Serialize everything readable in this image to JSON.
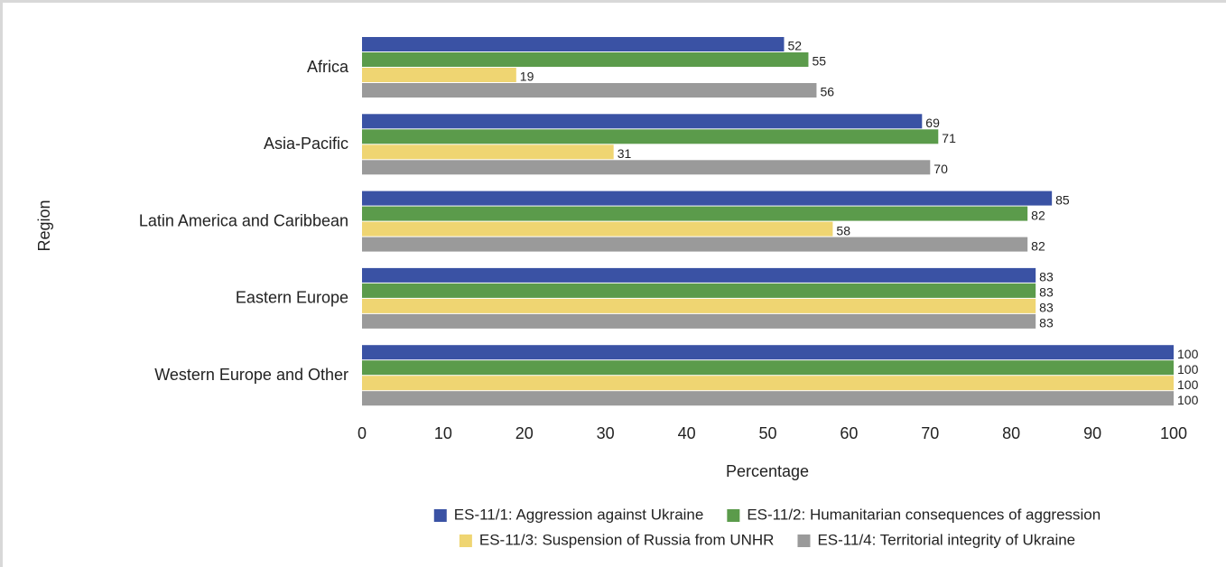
{
  "chart_data": {
    "type": "bar",
    "orientation": "horizontal",
    "xlabel": "Percentage",
    "ylabel": "Region",
    "categories": [
      "Africa",
      "Asia-Pacific",
      "Latin America and Caribbean",
      "Eastern Europe",
      "Western Europe and Other"
    ],
    "series": [
      {
        "name": "ES-11/1: Aggression against Ukraine",
        "color": "#3a52a4",
        "values": [
          52,
          69,
          85,
          83,
          100
        ]
      },
      {
        "name": "ES-11/2: Humanitarian consequences of aggression",
        "color": "#5b9b4b",
        "values": [
          55,
          71,
          82,
          83,
          100
        ]
      },
      {
        "name": "ES-11/3: Suspension of Russia from UNHR",
        "color": "#efd572",
        "values": [
          19,
          31,
          58,
          83,
          100
        ]
      },
      {
        "name": "ES-11/4: Territorial integrity of Ukraine",
        "color": "#9a9a9a",
        "values": [
          56,
          70,
          82,
          83,
          100
        ]
      }
    ],
    "xlim": [
      0,
      100
    ],
    "xticks": [
      0,
      10,
      20,
      30,
      40,
      50,
      60,
      70,
      80,
      90,
      100
    ],
    "grid": false,
    "legend": "bottom"
  }
}
